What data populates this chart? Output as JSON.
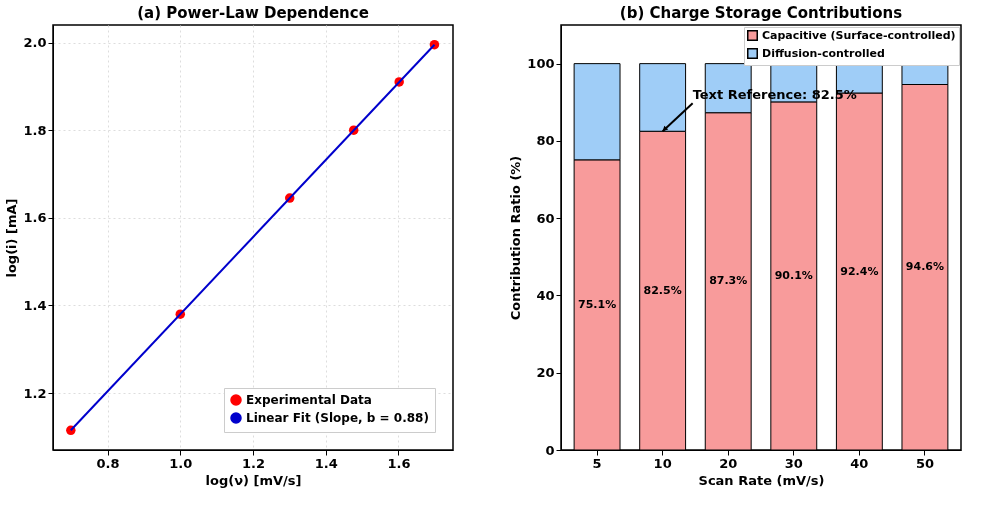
{
  "chart_data": [
    {
      "type": "scatter",
      "title": "(a) Power-Law Dependence",
      "xlabel": "log(ν) [mV/s]",
      "ylabel": "log(i) [mA]",
      "xlim": [
        0.65,
        1.75
      ],
      "xticks": [
        0.8,
        {
          "value": 1,
          "label": "1.0"
        },
        1.2,
        1.4,
        1.6
      ],
      "ylim": [
        1.07,
        2.04
      ],
      "yticks": [
        1.2,
        1.4,
        1.6,
        1.8,
        {
          "value": 2,
          "label": "2.0"
        }
      ],
      "grid": true,
      "legend": "bottom right",
      "series": [
        {
          "name": "Experimental Data",
          "type": "scatter",
          "marker": "circle",
          "color": "#ff0000",
          "x": [
            0.699,
            1.0,
            1.301,
            1.477,
            1.602,
            1.699
          ],
          "values": [
            1.115,
            1.38,
            1.645,
            1.8,
            1.91,
            1.995
          ]
        },
        {
          "name": "Linear Fit (Slope, b = 0.88)",
          "type": "line",
          "line_style": "solid",
          "color": "#0000cc",
          "x": [
            0.699,
            1.699
          ],
          "values": [
            1.115,
            1.995
          ]
        }
      ]
    },
    {
      "type": "bar",
      "title": "(b) Charge Storage Contributions",
      "xlabel": "Scan Rate (mV/s)",
      "ylabel": "Contribution Ratio (%)",
      "categories": [
        "5",
        "10",
        "20",
        "30",
        "40",
        "50"
      ],
      "stacked": true,
      "ylim": [
        0,
        110
      ],
      "yticks": [
        0,
        20,
        40,
        60,
        80,
        100
      ],
      "grid": false,
      "legend": "top right",
      "series": [
        {
          "name": "Capacitive (Surface-controlled)",
          "color": "#f89b9b",
          "values": [
            75.1,
            82.5,
            87.3,
            90.1,
            92.4,
            94.6
          ],
          "value_labels": [
            "75.1%",
            "82.5%",
            "87.3%",
            "90.1%",
            "92.4%",
            "94.6%"
          ]
        },
        {
          "name": "Diffusion-controlled",
          "color": "#9fcdf7",
          "values": [
            24.9,
            17.5,
            12.7,
            9.9,
            7.6,
            5.4
          ]
        }
      ],
      "annotations": [
        {
          "text": "Text Reference: 82.5%",
          "x": "10",
          "y": 82.5
        }
      ]
    }
  ]
}
